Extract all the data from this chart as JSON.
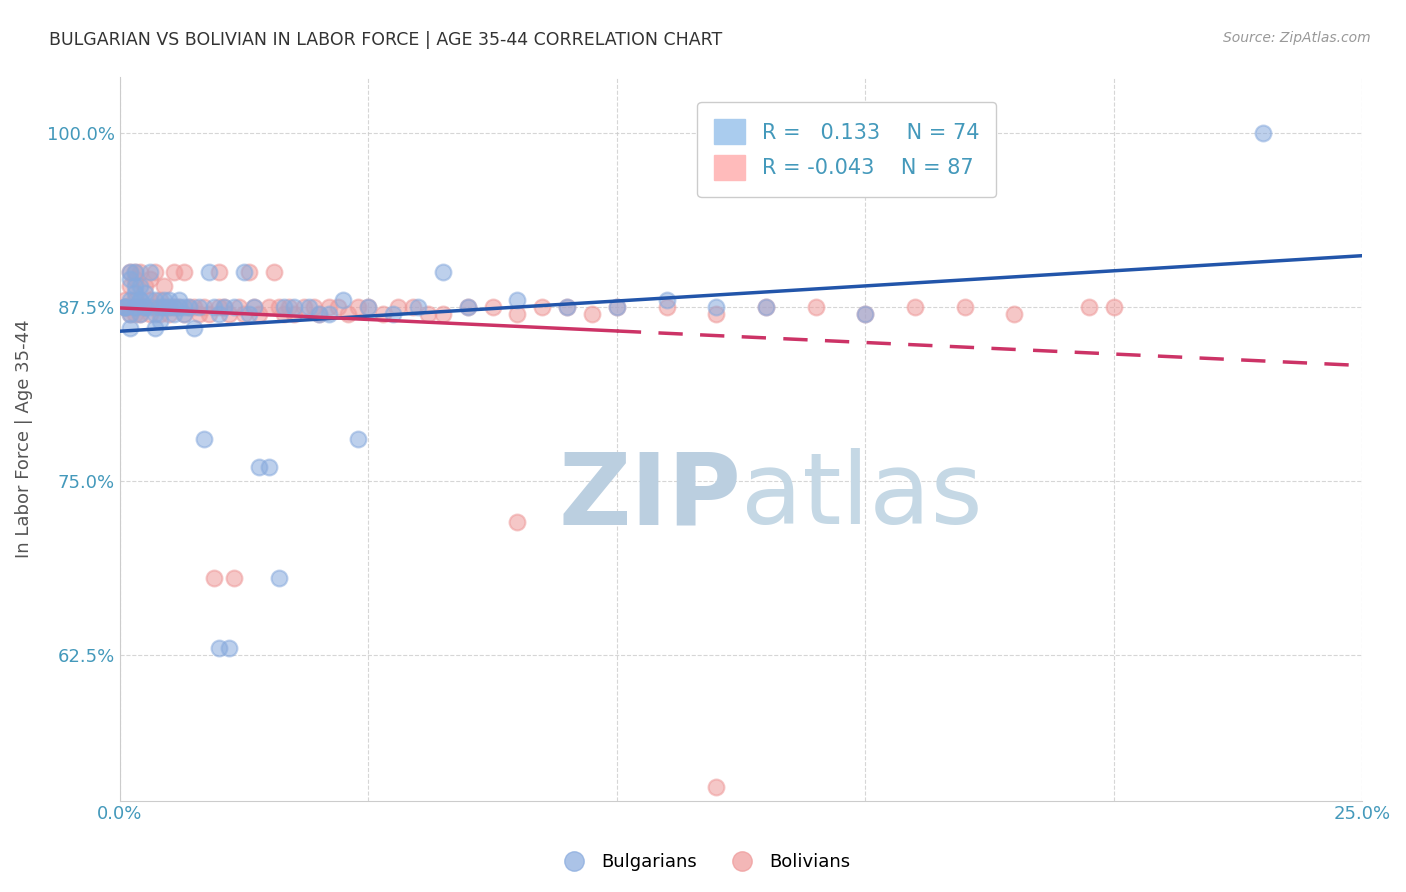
{
  "title": "BULGARIAN VS BOLIVIAN IN LABOR FORCE | AGE 35-44 CORRELATION CHART",
  "source": "Source: ZipAtlas.com",
  "ylabel": "In Labor Force | Age 35-44",
  "xlim": [
    0.0,
    0.25
  ],
  "ylim": [
    0.52,
    1.04
  ],
  "xticklabels": [
    "0.0%",
    "",
    "",
    "",
    "",
    "25.0%"
  ],
  "yticks": [
    0.625,
    0.75,
    0.875,
    1.0
  ],
  "yticklabels": [
    "62.5%",
    "75.0%",
    "87.5%",
    "100.0%"
  ],
  "R_bulgarian": 0.133,
  "N_bulgarian": 74,
  "R_bolivian": -0.043,
  "N_bolivian": 87,
  "blue_color": "#88AADD",
  "pink_color": "#EE9999",
  "blue_line_color": "#2255AA",
  "pink_line_color": "#CC3366",
  "bg_color": "#FFFFFF",
  "grid_color": "#CCCCCC",
  "title_color": "#333333",
  "axis_label_color": "#555555",
  "tick_color": "#4499BB",
  "bulgarian_x": [
    0.001,
    0.001,
    0.001,
    0.002,
    0.002,
    0.002,
    0.002,
    0.002,
    0.003,
    0.003,
    0.003,
    0.003,
    0.003,
    0.004,
    0.004,
    0.004,
    0.004,
    0.005,
    0.005,
    0.005,
    0.006,
    0.006,
    0.007,
    0.007,
    0.007,
    0.008,
    0.008,
    0.009,
    0.009,
    0.01,
    0.01,
    0.011,
    0.011,
    0.012,
    0.012,
    0.013,
    0.013,
    0.014,
    0.015,
    0.016,
    0.017,
    0.018,
    0.019,
    0.02,
    0.02,
    0.021,
    0.022,
    0.023,
    0.025,
    0.026,
    0.027,
    0.028,
    0.03,
    0.032,
    0.033,
    0.035,
    0.038,
    0.04,
    0.042,
    0.045,
    0.048,
    0.05,
    0.055,
    0.06,
    0.065,
    0.07,
    0.08,
    0.09,
    0.1,
    0.11,
    0.12,
    0.13,
    0.15,
    0.23
  ],
  "bulgarian_y": [
    0.875,
    0.875,
    0.875,
    0.88,
    0.9,
    0.895,
    0.87,
    0.86,
    0.875,
    0.885,
    0.89,
    0.9,
    0.875,
    0.88,
    0.87,
    0.89,
    0.88,
    0.875,
    0.885,
    0.875,
    0.9,
    0.875,
    0.87,
    0.88,
    0.86,
    0.875,
    0.865,
    0.875,
    0.88,
    0.875,
    0.88,
    0.875,
    0.87,
    0.88,
    0.875,
    0.875,
    0.87,
    0.875,
    0.86,
    0.875,
    0.78,
    0.9,
    0.875,
    0.87,
    0.63,
    0.875,
    0.63,
    0.875,
    0.9,
    0.87,
    0.875,
    0.76,
    0.76,
    0.68,
    0.875,
    0.875,
    0.875,
    0.87,
    0.87,
    0.88,
    0.78,
    0.875,
    0.87,
    0.875,
    0.9,
    0.875,
    0.88,
    0.875,
    0.875,
    0.88,
    0.875,
    0.875,
    0.87,
    1.0
  ],
  "bolivian_x": [
    0.001,
    0.001,
    0.001,
    0.002,
    0.002,
    0.002,
    0.002,
    0.003,
    0.003,
    0.003,
    0.003,
    0.003,
    0.004,
    0.004,
    0.004,
    0.005,
    0.005,
    0.006,
    0.006,
    0.006,
    0.007,
    0.007,
    0.008,
    0.008,
    0.009,
    0.009,
    0.01,
    0.01,
    0.011,
    0.011,
    0.012,
    0.013,
    0.013,
    0.014,
    0.015,
    0.016,
    0.017,
    0.018,
    0.019,
    0.02,
    0.02,
    0.021,
    0.022,
    0.023,
    0.024,
    0.025,
    0.026,
    0.027,
    0.028,
    0.03,
    0.031,
    0.032,
    0.033,
    0.034,
    0.035,
    0.037,
    0.039,
    0.04,
    0.042,
    0.044,
    0.046,
    0.048,
    0.05,
    0.053,
    0.056,
    0.059,
    0.062,
    0.065,
    0.07,
    0.075,
    0.08,
    0.085,
    0.09,
    0.095,
    0.1,
    0.11,
    0.12,
    0.13,
    0.14,
    0.15,
    0.16,
    0.17,
    0.18,
    0.195,
    0.2,
    0.08,
    0.12
  ],
  "bolivian_y": [
    0.875,
    0.875,
    0.88,
    0.875,
    0.9,
    0.89,
    0.87,
    0.875,
    0.9,
    0.895,
    0.87,
    0.88,
    0.875,
    0.87,
    0.9,
    0.875,
    0.89,
    0.88,
    0.87,
    0.895,
    0.9,
    0.875,
    0.87,
    0.88,
    0.875,
    0.89,
    0.875,
    0.87,
    0.875,
    0.9,
    0.875,
    0.87,
    0.9,
    0.875,
    0.875,
    0.87,
    0.875,
    0.87,
    0.68,
    0.875,
    0.9,
    0.875,
    0.87,
    0.68,
    0.875,
    0.87,
    0.9,
    0.875,
    0.87,
    0.875,
    0.9,
    0.875,
    0.87,
    0.875,
    0.87,
    0.875,
    0.875,
    0.87,
    0.875,
    0.875,
    0.87,
    0.875,
    0.875,
    0.87,
    0.875,
    0.875,
    0.87,
    0.87,
    0.875,
    0.875,
    0.87,
    0.875,
    0.875,
    0.87,
    0.875,
    0.875,
    0.87,
    0.875,
    0.875,
    0.87,
    0.875,
    0.875,
    0.87,
    0.875,
    0.875,
    0.72,
    0.53
  ]
}
